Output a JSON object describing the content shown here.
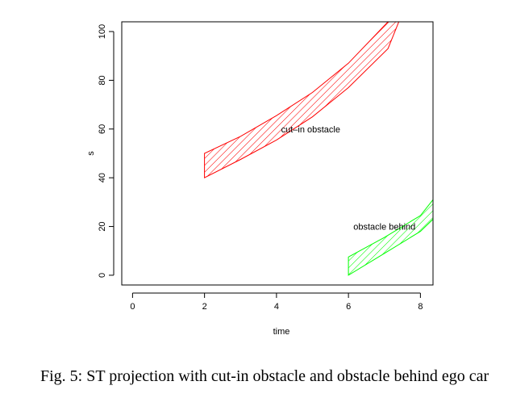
{
  "chart_data": {
    "type": "area",
    "xlabel": "time",
    "ylabel": "s",
    "xlim": [
      -0.3,
      8.35
    ],
    "ylim": [
      -4,
      104
    ],
    "xticks": [
      0,
      2,
      4,
      6,
      8
    ],
    "yticks": [
      0,
      20,
      40,
      60,
      80,
      100
    ],
    "grid": false,
    "series": [
      {
        "color": "#ff0000",
        "fill": "hatched",
        "upper": {
          "x": [
            2,
            3,
            4,
            5,
            6,
            7.1
          ],
          "y": [
            50,
            57,
            65.5,
            75,
            87,
            104
          ]
        },
        "lower": {
          "x": [
            2,
            3,
            4,
            5,
            6,
            7.1,
            7.4
          ],
          "y": [
            40,
            47.5,
            55.5,
            65,
            77,
            93,
            104
          ]
        }
      },
      {
        "color": "#00ff00",
        "fill": "hatched",
        "upper": {
          "x": [
            6,
            7,
            8,
            8.35
          ],
          "y": [
            7.5,
            15.5,
            24.5,
            31
          ]
        },
        "lower": {
          "x": [
            6,
            7,
            8,
            8.35
          ],
          "y": [
            0,
            9,
            18,
            23
          ]
        }
      }
    ],
    "annotations": [
      {
        "text": "cut–in obstacle",
        "x": 4.95,
        "y": 60
      },
      {
        "text": "obstacle behind",
        "x": 7.0,
        "y": 20
      }
    ]
  },
  "caption": "Fig. 5: ST projection with cut-in obstacle and obstacle behind ego car"
}
